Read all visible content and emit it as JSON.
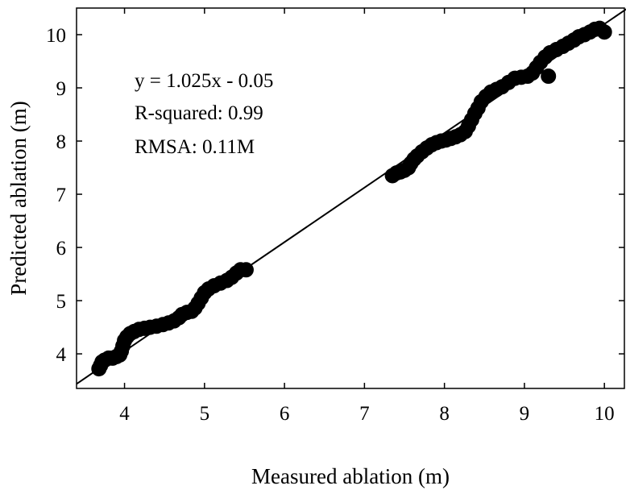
{
  "chart_data": {
    "type": "scatter",
    "xlabel": "Measured ablation (m)",
    "ylabel": "Predicted ablation (m)",
    "xlim": [
      3.4,
      10.25
    ],
    "ylim": [
      3.35,
      10.5
    ],
    "xticks": [
      "4",
      "5",
      "6",
      "7",
      "8",
      "9",
      "10"
    ],
    "yticks": [
      "4",
      "5",
      "6",
      "7",
      "8",
      "9",
      "10"
    ],
    "grid": false,
    "annotations": [
      "y = 1.025x - 0.05",
      "R-squared: 0.99",
      "RMSA: 0.11M"
    ],
    "fit_line": {
      "slope": 1.025,
      "intercept": -0.05
    },
    "points": [
      [
        3.68,
        3.72
      ],
      [
        3.7,
        3.78
      ],
      [
        3.72,
        3.85
      ],
      [
        3.75,
        3.88
      ],
      [
        3.8,
        3.92
      ],
      [
        3.85,
        3.92
      ],
      [
        3.9,
        3.95
      ],
      [
        3.94,
        3.98
      ],
      [
        3.96,
        4.05
      ],
      [
        3.98,
        4.15
      ],
      [
        4.0,
        4.25
      ],
      [
        4.03,
        4.32
      ],
      [
        4.07,
        4.38
      ],
      [
        4.12,
        4.42
      ],
      [
        4.18,
        4.46
      ],
      [
        4.25,
        4.48
      ],
      [
        4.32,
        4.5
      ],
      [
        4.4,
        4.52
      ],
      [
        4.48,
        4.55
      ],
      [
        4.55,
        4.58
      ],
      [
        4.62,
        4.62
      ],
      [
        4.68,
        4.68
      ],
      [
        4.72,
        4.74
      ],
      [
        4.78,
        4.78
      ],
      [
        4.84,
        4.8
      ],
      [
        4.88,
        4.86
      ],
      [
        4.92,
        4.95
      ],
      [
        4.96,
        5.05
      ],
      [
        5.0,
        5.15
      ],
      [
        5.05,
        5.22
      ],
      [
        5.12,
        5.28
      ],
      [
        5.2,
        5.33
      ],
      [
        5.28,
        5.38
      ],
      [
        5.34,
        5.44
      ],
      [
        5.4,
        5.52
      ],
      [
        5.45,
        5.58
      ],
      [
        5.52,
        5.58
      ],
      [
        7.35,
        7.35
      ],
      [
        7.4,
        7.4
      ],
      [
        7.45,
        7.42
      ],
      [
        7.5,
        7.45
      ],
      [
        7.55,
        7.5
      ],
      [
        7.58,
        7.58
      ],
      [
        7.62,
        7.66
      ],
      [
        7.66,
        7.72
      ],
      [
        7.72,
        7.8
      ],
      [
        7.78,
        7.87
      ],
      [
        7.84,
        7.93
      ],
      [
        7.9,
        7.97
      ],
      [
        7.96,
        8.0
      ],
      [
        8.02,
        8.02
      ],
      [
        8.08,
        8.05
      ],
      [
        8.14,
        8.08
      ],
      [
        8.2,
        8.12
      ],
      [
        8.26,
        8.18
      ],
      [
        8.3,
        8.28
      ],
      [
        8.34,
        8.4
      ],
      [
        8.38,
        8.52
      ],
      [
        8.42,
        8.62
      ],
      [
        8.46,
        8.74
      ],
      [
        8.52,
        8.84
      ],
      [
        8.58,
        8.92
      ],
      [
        8.65,
        8.97
      ],
      [
        8.72,
        9.02
      ],
      [
        8.8,
        9.1
      ],
      [
        8.88,
        9.18
      ],
      [
        8.96,
        9.2
      ],
      [
        9.04,
        9.22
      ],
      [
        9.1,
        9.28
      ],
      [
        9.15,
        9.38
      ],
      [
        9.2,
        9.48
      ],
      [
        9.26,
        9.58
      ],
      [
        9.3,
        9.22
      ],
      [
        9.32,
        9.66
      ],
      [
        9.4,
        9.72
      ],
      [
        9.48,
        9.78
      ],
      [
        9.55,
        9.84
      ],
      [
        9.62,
        9.9
      ],
      [
        9.68,
        9.96
      ],
      [
        9.75,
        10.0
      ],
      [
        9.82,
        10.05
      ],
      [
        9.88,
        10.1
      ],
      [
        9.94,
        10.12
      ],
      [
        10.0,
        10.05
      ]
    ]
  }
}
